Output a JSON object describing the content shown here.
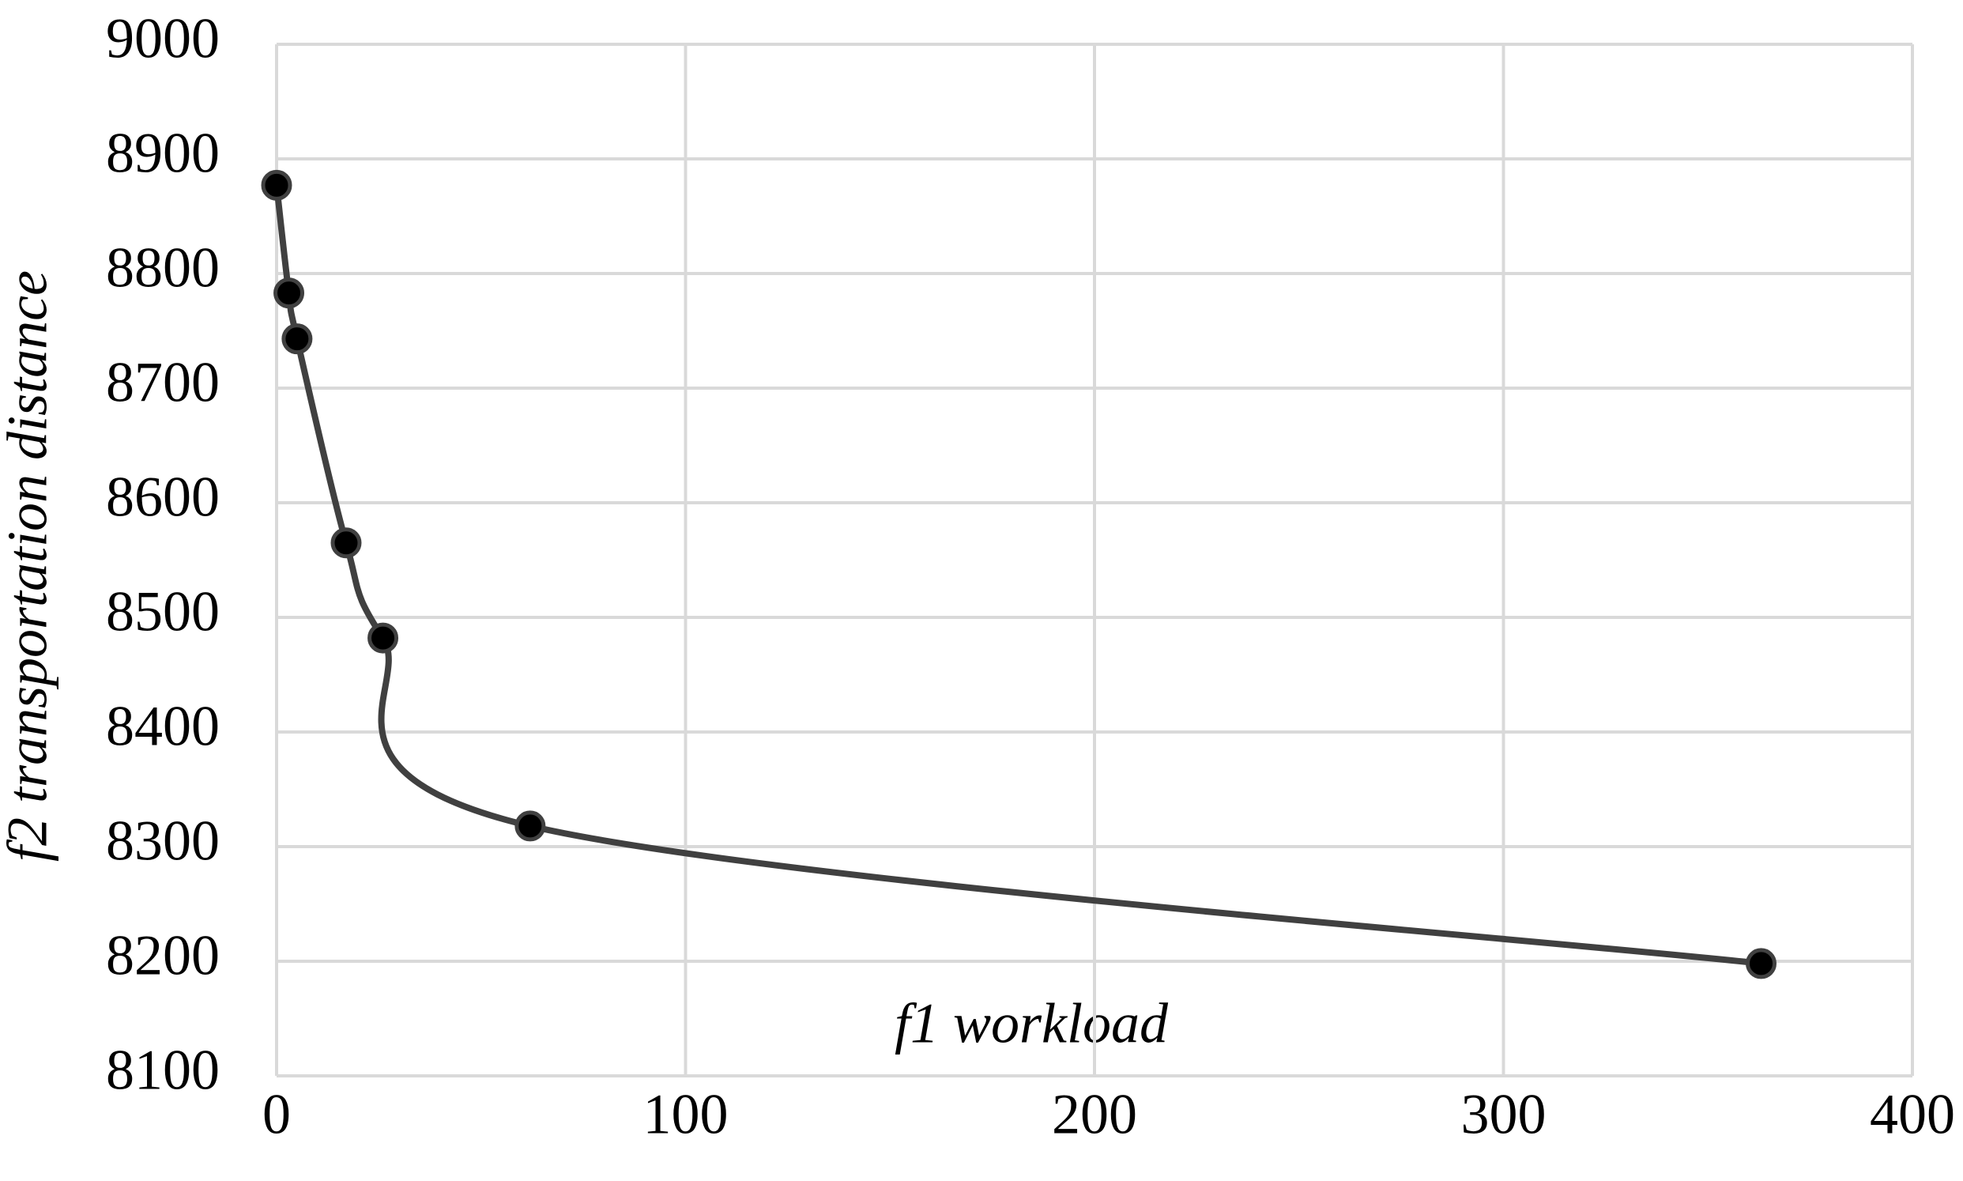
{
  "chart_data": {
    "type": "scatter",
    "x_label": "f1 workload",
    "y_label": "f2 transportation distance",
    "series": [
      {
        "color": "#404040",
        "marker_color": "#000000",
        "x": [
          0,
          3,
          5,
          17,
          26,
          62,
          363
        ],
        "values": [
          8877,
          8783,
          8743,
          8565,
          8482,
          8318,
          8198
        ]
      }
    ],
    "smooth": true,
    "xlim": [
      0,
      400
    ],
    "xticks": [
      0,
      100,
      200,
      300,
      400
    ],
    "ylim": [
      8100,
      9000
    ],
    "yticks": [
      8100,
      8200,
      8300,
      8400,
      8500,
      8600,
      8700,
      8800,
      8900,
      9000
    ],
    "grid": true
  }
}
